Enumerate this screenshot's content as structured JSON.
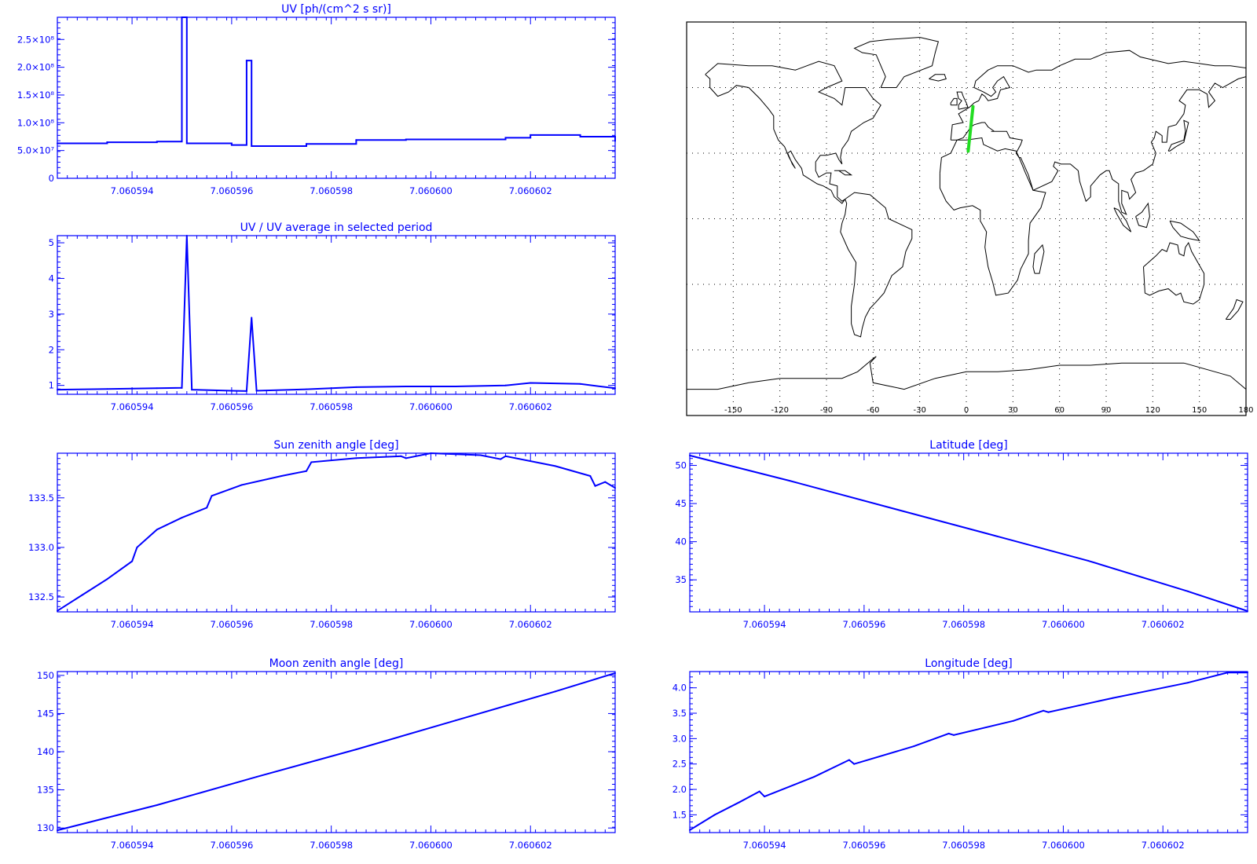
{
  "colors": {
    "series": "#0000ff",
    "track": "#22dd22",
    "map_lines": "#000000"
  },
  "chart_data": [
    {
      "id": "uv",
      "type": "line",
      "step": true,
      "title": "UV [ph/(cm^2 s sr)]",
      "xlabel": "",
      "ylabel": "",
      "xlim": [
        7.0605925,
        7.0606037
      ],
      "ylim": [
        0,
        290000000
      ],
      "xticks": [
        "7.060594",
        "7.060596",
        "7.060598",
        "7.060600",
        "7.060602"
      ],
      "yticks": [
        "0",
        "5.0×10⁷",
        "1.0×10⁸",
        "1.5×10⁸",
        "2.0×10⁸",
        "2.5×10⁸"
      ],
      "x": [
        7.0605925,
        7.0605935,
        7.0605945,
        7.060595,
        7.0605951,
        7.060596,
        7.0605963,
        7.0605964,
        7.0605975,
        7.0605985,
        7.0605995,
        7.0606005,
        7.0606015,
        7.060602,
        7.060603,
        7.0606037
      ],
      "y": [
        63000000,
        65000000,
        66000000,
        290000000,
        63000000,
        60000000,
        212000000,
        58000000,
        62000000,
        69000000,
        70000000,
        70000000,
        73000000,
        78000000,
        75000000,
        67000000
      ]
    },
    {
      "id": "uv_ratio",
      "type": "line",
      "title": "UV / UV average in selected period",
      "xlabel": "",
      "ylabel": "",
      "xlim": [
        7.0605925,
        7.0606037
      ],
      "ylim": [
        0.75,
        5.2
      ],
      "xticks": [
        "7.060594",
        "7.060596",
        "7.060598",
        "7.060600",
        "7.060602"
      ],
      "yticks": [
        "1",
        "2",
        "3",
        "4",
        "5"
      ],
      "x": [
        7.0605925,
        7.0605935,
        7.0605945,
        7.060595,
        7.0605951,
        7.0605952,
        7.060596,
        7.0605963,
        7.0605964,
        7.0605965,
        7.0605975,
        7.0605985,
        7.0605995,
        7.0606005,
        7.0606015,
        7.060602,
        7.060603,
        7.0606037
      ],
      "y": [
        0.88,
        0.9,
        0.92,
        0.93,
        5.2,
        0.88,
        0.85,
        0.84,
        2.9,
        0.85,
        0.89,
        0.95,
        0.97,
        0.97,
        1.0,
        1.07,
        1.04,
        0.92
      ]
    },
    {
      "id": "sun_zenith",
      "type": "line",
      "title": "Sun zenith angle [deg]",
      "xlabel": "",
      "ylabel": "",
      "xlim": [
        7.0605925,
        7.0606037
      ],
      "ylim": [
        132.35,
        133.95
      ],
      "xticks": [
        "7.060594",
        "7.060596",
        "7.060598",
        "7.060600",
        "7.060602"
      ],
      "yticks": [
        "132.5",
        "133.0",
        "133.5"
      ],
      "x": [
        7.0605925,
        7.060593,
        7.0605935,
        7.060594,
        7.0605941,
        7.0605945,
        7.060595,
        7.0605955,
        7.0605956,
        7.0605962,
        7.060597,
        7.0605975,
        7.0605976,
        7.0605985,
        7.0605994,
        7.0605995,
        7.0606,
        7.060601,
        7.0606014,
        7.0606015,
        7.0606025,
        7.0606032,
        7.0606033,
        7.0606035,
        7.0606037
      ],
      "y": [
        132.36,
        132.52,
        132.68,
        132.86,
        133.0,
        133.18,
        133.3,
        133.4,
        133.52,
        133.63,
        133.72,
        133.77,
        133.86,
        133.9,
        133.92,
        133.9,
        133.95,
        133.93,
        133.89,
        133.92,
        133.82,
        133.72,
        133.62,
        133.66,
        133.6
      ]
    },
    {
      "id": "latitude",
      "type": "line",
      "title": "Latitude [deg]",
      "xlabel": "",
      "ylabel": "",
      "xlim": [
        7.0605925,
        7.0606037
      ],
      "ylim": [
        30.8,
        51.6
      ],
      "xticks": [
        "7.060594",
        "7.060596",
        "7.060598",
        "7.060600",
        "7.060602"
      ],
      "yticks": [
        "35",
        "40",
        "45",
        "50"
      ],
      "x": [
        7.0605925,
        7.0605945,
        7.0605965,
        7.0605985,
        7.0606005,
        7.0606025,
        7.0606037
      ],
      "y": [
        51.3,
        48.0,
        44.5,
        41.0,
        37.5,
        33.5,
        30.9
      ]
    },
    {
      "id": "moon_zenith",
      "type": "line",
      "title": "Moon zenith angle [deg]",
      "xlabel": "",
      "ylabel": "",
      "xlim": [
        7.0605925,
        7.0606037
      ],
      "ylim": [
        129.4,
        150.5
      ],
      "xticks": [
        "7.060594",
        "7.060596",
        "7.060598",
        "7.060600",
        "7.060602"
      ],
      "yticks": [
        "130",
        "135",
        "140",
        "145",
        "150"
      ],
      "x": [
        7.0605925,
        7.0605945,
        7.0605965,
        7.0605985,
        7.0606005,
        7.0606025,
        7.0606037
      ],
      "y": [
        129.7,
        133.0,
        136.7,
        140.3,
        144.1,
        147.9,
        150.3
      ]
    },
    {
      "id": "longitude",
      "type": "line",
      "title": "Longitude [deg]",
      "xlabel": "",
      "ylabel": "",
      "xlim": [
        7.0605925,
        7.0606037
      ],
      "ylim": [
        1.15,
        4.32
      ],
      "xticks": [
        "7.060594",
        "7.060596",
        "7.060598",
        "7.060600",
        "7.060602"
      ],
      "yticks": [
        "1.5",
        "2.0",
        "2.5",
        "3.0",
        "3.5",
        "4.0"
      ],
      "x": [
        7.0605925,
        7.060593,
        7.0605935,
        7.0605939,
        7.060594,
        7.060595,
        7.0605957,
        7.0605958,
        7.060597,
        7.0605977,
        7.0605978,
        7.060599,
        7.0605996,
        7.0605997,
        7.060601,
        7.0606015,
        7.0606025,
        7.0606033,
        7.0606037
      ],
      "y": [
        1.2,
        1.5,
        1.75,
        1.96,
        1.86,
        2.25,
        2.58,
        2.5,
        2.85,
        3.1,
        3.07,
        3.35,
        3.55,
        3.52,
        3.8,
        3.9,
        4.1,
        4.3,
        4.3
      ]
    }
  ],
  "map": {
    "type": "map",
    "projection": "cylindrical",
    "lon_range": [
      -180,
      180
    ],
    "lat_range": [
      -90,
      90
    ],
    "lon_ticks": [
      "-150",
      "-120",
      "-90",
      "-60",
      "-30",
      "0",
      "30",
      "60",
      "90",
      "120",
      "150",
      "180"
    ],
    "gridlines": "dotted",
    "track": {
      "lon": [
        4.3,
        1.2
      ],
      "lat": [
        51.3,
        30.9
      ]
    }
  }
}
